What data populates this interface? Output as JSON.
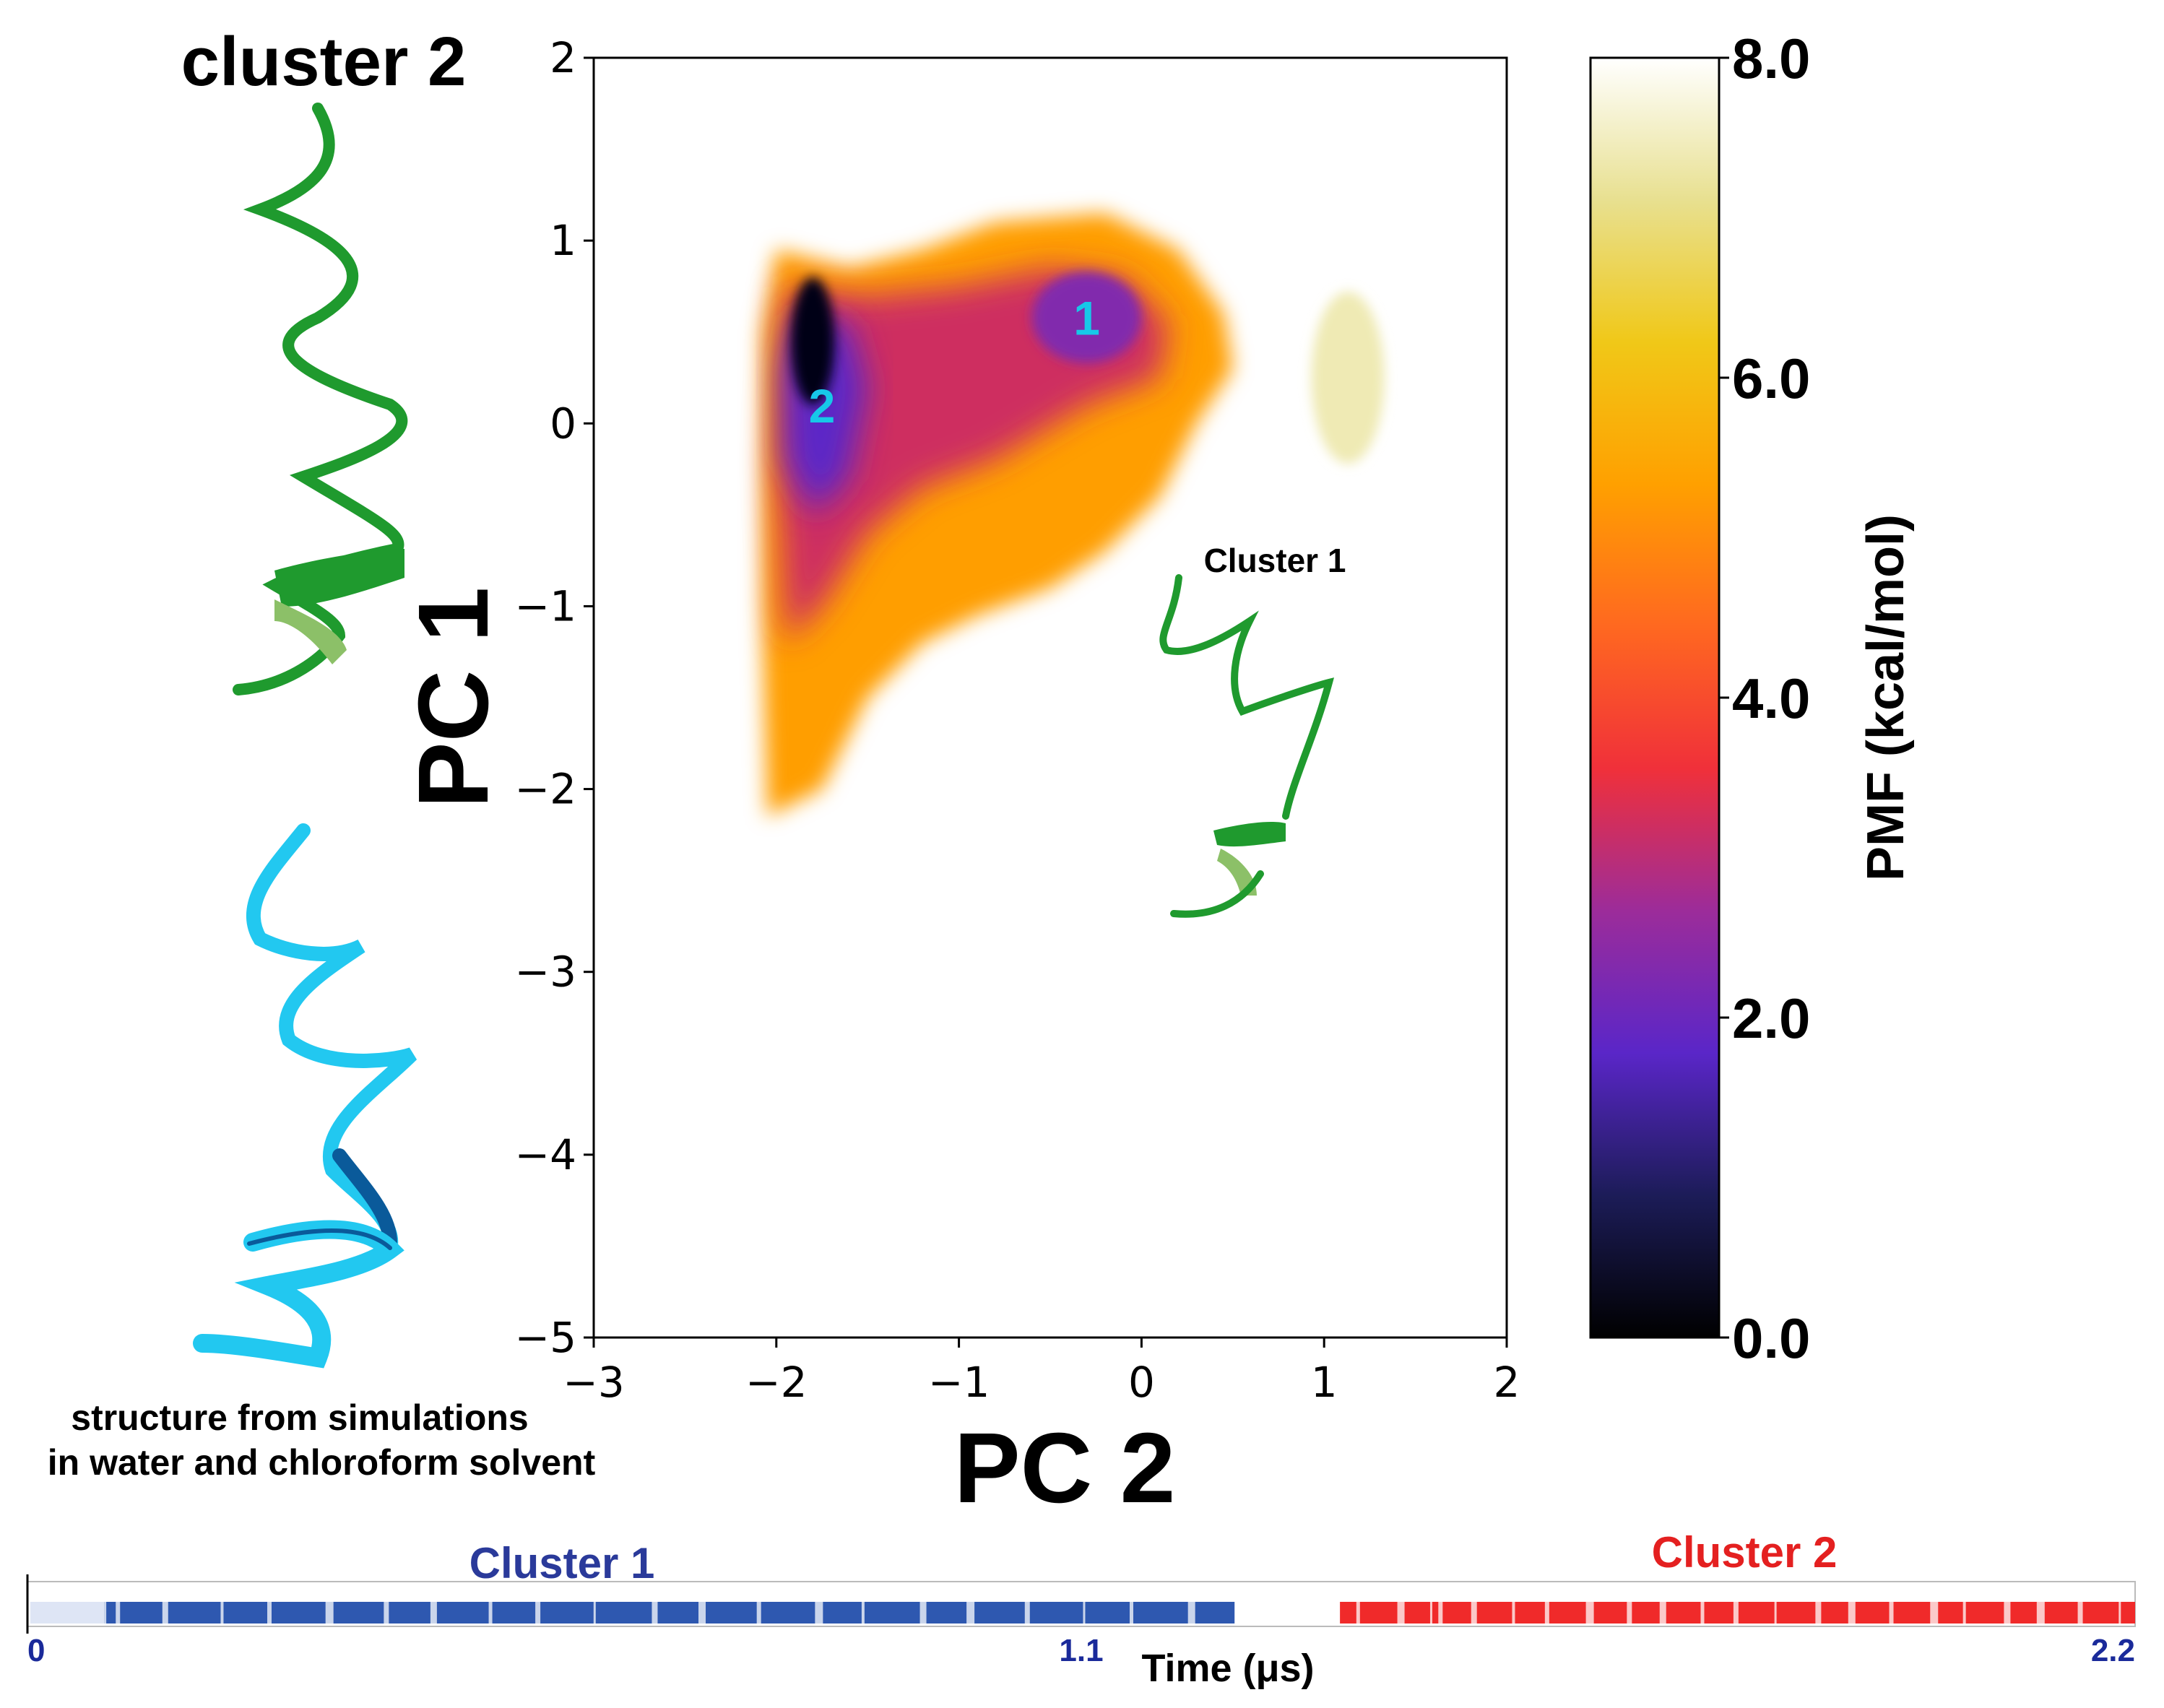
{
  "chart_data": [
    {
      "type": "heatmap",
      "title": "",
      "xlabel": "PC 2",
      "ylabel": "PC 1",
      "xlim": [
        -3,
        2
      ],
      "ylim": [
        -5,
        2
      ],
      "xticks": [
        -3,
        -2,
        -1,
        0,
        1,
        2
      ],
      "yticks": [
        -5,
        -4,
        -3,
        -2,
        -1,
        0,
        1,
        2
      ],
      "xtick_labels": [
        "−3",
        "−2",
        "−1",
        "0",
        "1",
        "2"
      ],
      "ytick_labels": [
        "−5",
        "−4",
        "−3",
        "−2",
        "−1",
        "0",
        "1",
        "2"
      ],
      "colorbar": {
        "label": "PMF (kcal/mol)",
        "range": [
          0,
          8
        ],
        "ticks": [
          0,
          2,
          4,
          6,
          8
        ],
        "tick_labels": [
          "0.0",
          "2.0",
          "4.0",
          "6.0",
          "8.0"
        ],
        "colors": [
          "#000000",
          "#1c1c58",
          "#5a26c8",
          "#9c2c9a",
          "#f0303a",
          "#ff6820",
          "#ffa000",
          "#f0c818",
          "#e8e090",
          "#ffffff"
        ]
      },
      "regions": [
        {
          "name": "main-basin",
          "polygon": [
            [
              -2.0,
              0.95
            ],
            [
              -1.6,
              0.85
            ],
            [
              -1.2,
              0.95
            ],
            [
              -0.8,
              1.1
            ],
            [
              -0.2,
              1.15
            ],
            [
              0.2,
              0.95
            ],
            [
              0.45,
              0.6
            ],
            [
              0.5,
              0.3
            ],
            [
              0.3,
              0.0
            ],
            [
              0.1,
              -0.4
            ],
            [
              -0.2,
              -0.7
            ],
            [
              -0.5,
              -0.9
            ],
            [
              -0.9,
              -1.05
            ],
            [
              -1.2,
              -1.2
            ],
            [
              -1.5,
              -1.5
            ],
            [
              -1.75,
              -2.0
            ],
            [
              -2.05,
              -2.15
            ],
            [
              -2.08,
              -1.0
            ],
            [
              -2.08,
              0.5
            ]
          ],
          "pmf": 5.3
        },
        {
          "name": "inner-basin",
          "polygon": [
            [
              -1.95,
              0.75
            ],
            [
              -1.5,
              0.7
            ],
            [
              -1.0,
              0.75
            ],
            [
              -0.5,
              0.85
            ],
            [
              -0.1,
              0.8
            ],
            [
              0.15,
              0.55
            ],
            [
              0.1,
              0.25
            ],
            [
              -0.3,
              0.1
            ],
            [
              -0.8,
              -0.2
            ],
            [
              -1.2,
              -0.35
            ],
            [
              -1.5,
              -0.6
            ],
            [
              -1.75,
              -1.0
            ],
            [
              -1.95,
              -1.2
            ],
            [
              -2.0,
              -0.2
            ]
          ],
          "pmf": 3.2
        },
        {
          "name": "deep-basin",
          "polygon": [
            [
              -1.9,
              0.6
            ],
            [
              -1.6,
              0.55
            ],
            [
              -1.5,
              0.2
            ],
            [
              -1.6,
              -0.3
            ],
            [
              -1.8,
              -0.5
            ],
            [
              -1.95,
              -0.2
            ],
            [
              -1.97,
              0.3
            ]
          ],
          "pmf": 1.8
        },
        {
          "name": "minimum-2",
          "center": [
            -1.8,
            0.45
          ],
          "radius": [
            0.12,
            0.35
          ],
          "pmf": 0.2
        },
        {
          "name": "minimum-1",
          "center": [
            -0.3,
            0.58
          ],
          "radius": [
            0.3,
            0.25
          ],
          "pmf": 2.3
        },
        {
          "name": "isolated-basin",
          "center": [
            1.13,
            0.25
          ],
          "radius": [
            0.2,
            0.47
          ],
          "pmf": 7.4
        }
      ],
      "annotations": [
        {
          "text": "1",
          "x": -0.3,
          "y": 0.58,
          "color": "#17c8e8"
        },
        {
          "text": "2",
          "x": -1.75,
          "y": 0.1,
          "color": "#17c8e8"
        }
      ]
    },
    {
      "type": "timeline",
      "xlabel": "Time (μs)",
      "xlim": [
        0,
        2.2
      ],
      "tick_labels": [
        "0",
        "1.1",
        "2.2"
      ],
      "tick_values": [
        0,
        1.1,
        2.2
      ],
      "series": [
        {
          "name": "Cluster 1",
          "color": "#2e58b0",
          "start": 0.08,
          "end": 1.26
        },
        {
          "name": "Cluster 2",
          "color": "#f02a2a",
          "start": 1.37,
          "end": 2.2
        }
      ]
    }
  ],
  "labels": {
    "cluster2_heading": "cluster 2",
    "cluster1_inset": "Cluster 1",
    "structure_caption_line1": "structure from simulations",
    "structure_caption_line2": "in water and chloroform solvent",
    "timeline_cluster1": "Cluster 1",
    "timeline_cluster2": "Cluster 2"
  },
  "colors": {
    "helix_green": "#1f9a2e",
    "helix_green_light": "#8cc068",
    "helix_cyan": "#22c8f0",
    "helix_cyan_dark": "#0a5a9a",
    "annotation_cyan": "#17c8e8",
    "cluster1_blue": "#2e58b0",
    "cluster2_red": "#f02a2a",
    "time_axis_blue": "#1a2a9a"
  }
}
